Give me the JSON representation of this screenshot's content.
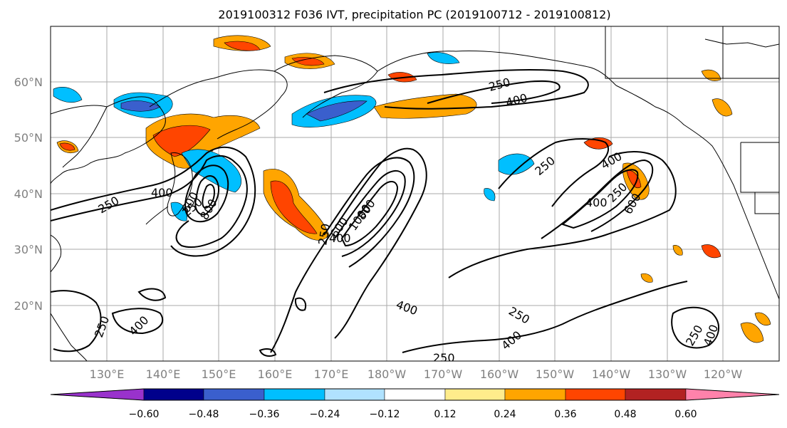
{
  "title": "2019100312 F036 IVT, precipitation PC (2019100712 - 2019100812)",
  "lat_labels": [
    "60°N",
    "50°N",
    "40°N",
    "30°N",
    "20°N"
  ],
  "lon_labels": [
    "130°E",
    "140°E",
    "150°E",
    "160°E",
    "170°E",
    "180°W",
    "170°W",
    "160°W",
    "150°W",
    "140°W",
    "130°W",
    "120°W"
  ],
  "colorbar": {
    "tick_labels": [
      "−0.60",
      "−0.48",
      "−0.36",
      "−0.24",
      "−0.12",
      "0.12",
      "0.24",
      "0.36",
      "0.48",
      "0.60"
    ],
    "colors": [
      "#9932cc",
      "#00008b",
      "#3a5fcd",
      "#00bfff",
      "#b0e2ff",
      "#ffffff",
      "#ffec8b",
      "#ffa500",
      "#ff4500",
      "#b22222",
      "#ff82ab"
    ]
  },
  "contour_labels": [
    "250",
    "400",
    "250",
    "600",
    "800",
    "400",
    "250",
    "600",
    "1000",
    "800",
    "400",
    "250",
    "400",
    "250",
    "250",
    "400",
    "250",
    "400",
    "250",
    "400",
    "600",
    "250",
    "400",
    "250",
    "400"
  ]
}
